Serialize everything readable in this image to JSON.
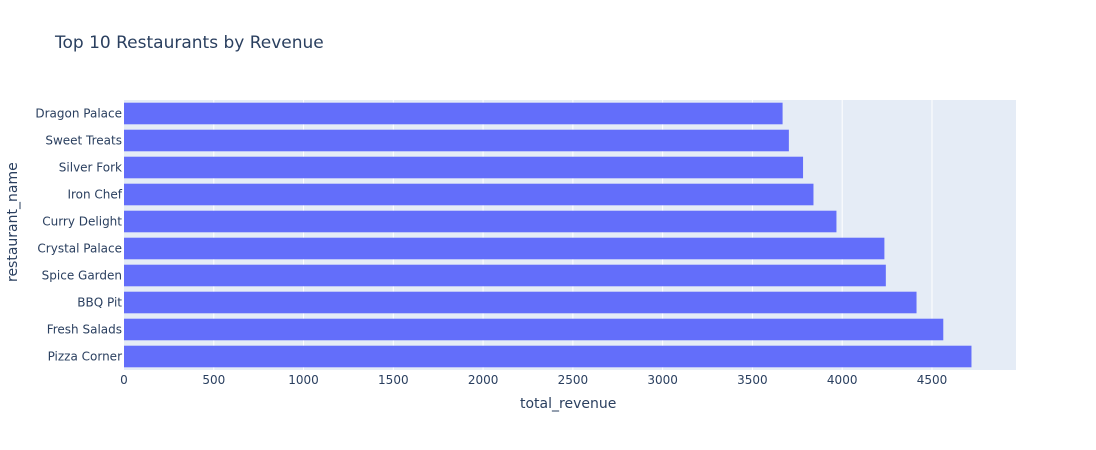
{
  "chart_data": {
    "type": "bar",
    "orientation": "horizontal",
    "title": "Top 10 Restaurants by Revenue",
    "xlabel": "total_revenue",
    "ylabel": "restaurant_name",
    "categories": [
      "Dragon Palace",
      "Sweet Treats",
      "Silver Fork",
      "Iron Chef",
      "Curry Delight",
      "Crystal Palace",
      "Spice Garden",
      "BBQ Pit",
      "Fresh Salads",
      "Pizza Corner"
    ],
    "values": [
      3668,
      3703,
      3782,
      3840,
      3968,
      4235,
      4243,
      4414,
      4563,
      4720
    ],
    "xlim": [
      0,
      4968
    ],
    "x_ticks": [
      0,
      500,
      1000,
      1500,
      2000,
      2500,
      3000,
      3500,
      4000,
      4500
    ],
    "grid": true,
    "colors": {
      "bar": "#636efa",
      "plot_background": "#e5ecf6",
      "gridline": "#ffffff",
      "text": "#2a3f5f",
      "tick_text": "#2a3f5f"
    }
  }
}
